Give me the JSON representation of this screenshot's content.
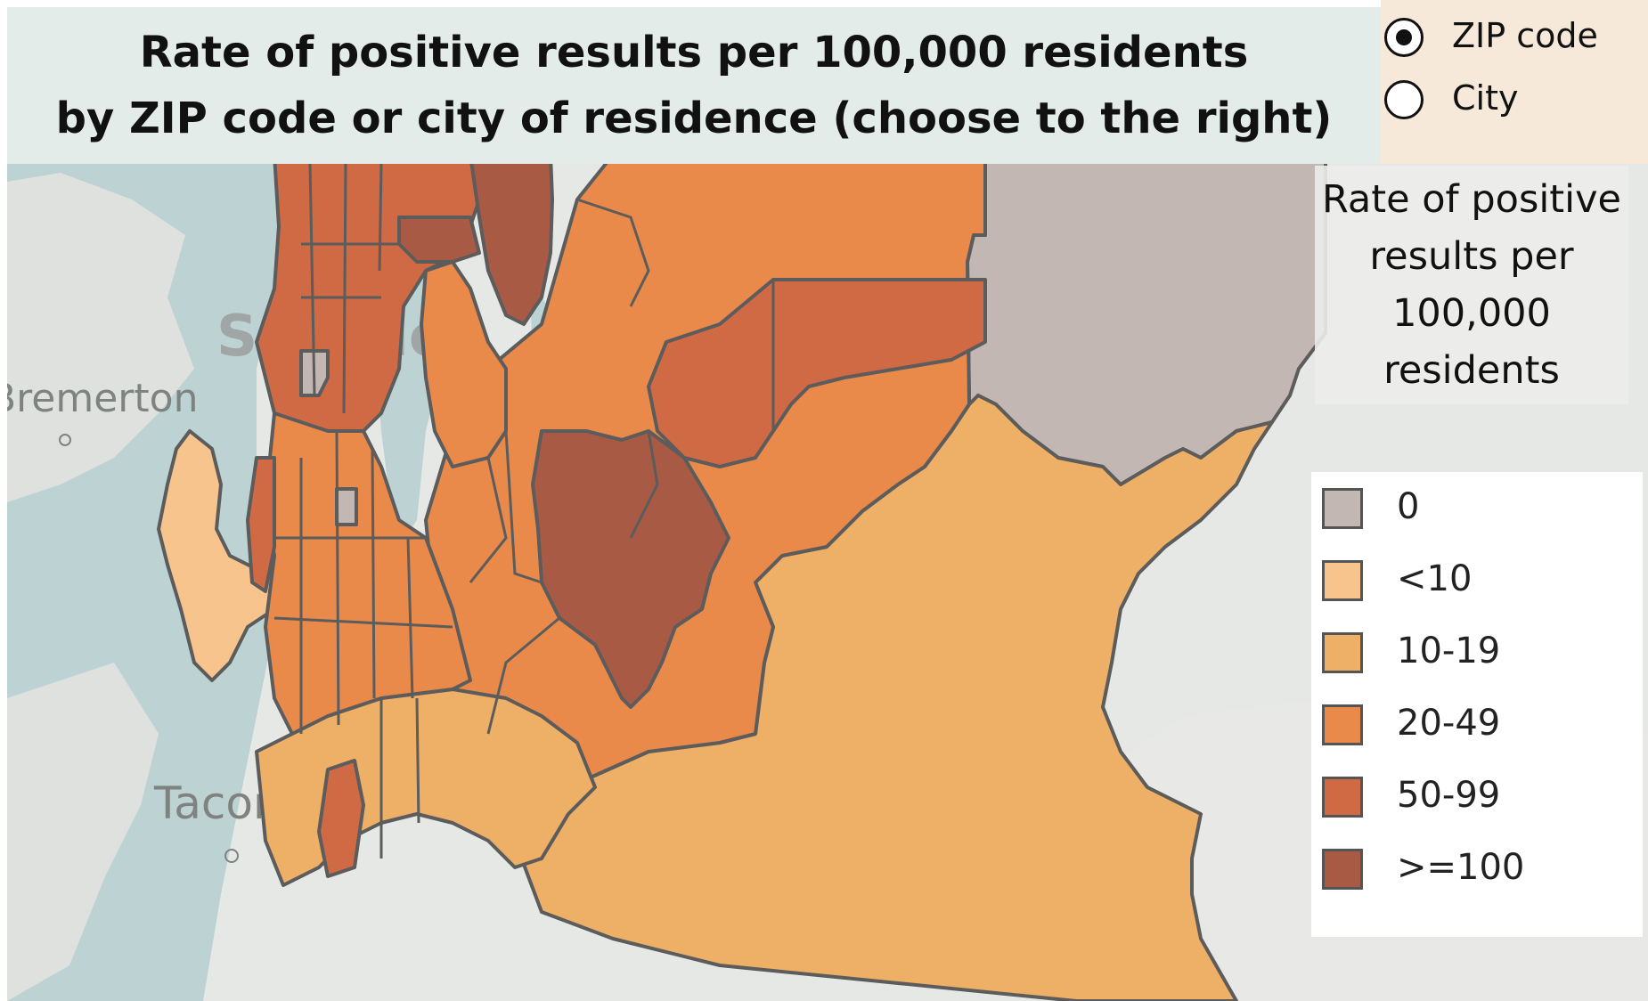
{
  "title": {
    "line1": "Rate of positive results per 100,000 residents",
    "line2": "by ZIP code or city of residence (choose to the right)"
  },
  "geography_toggle": {
    "options": [
      {
        "label": "ZIP code",
        "selected": true
      },
      {
        "label": "City",
        "selected": false
      }
    ]
  },
  "map": {
    "place_labels": [
      "Seattle",
      "Bremerton",
      "Tacoma"
    ],
    "legend": {
      "title": "Rate of positive results per 100,000 residents",
      "items": [
        {
          "label": "0",
          "color": "#c2b7b3"
        },
        {
          "label": "<10",
          "color": "#f7c48e"
        },
        {
          "label": "10-19",
          "color": "#eeaf66"
        },
        {
          "label": "20-49",
          "color": "#e98a4a"
        },
        {
          "label": "50-99",
          "color": "#cf6a45"
        },
        {
          "label": ">=100",
          "color": "#a85a45"
        }
      ]
    }
  }
}
